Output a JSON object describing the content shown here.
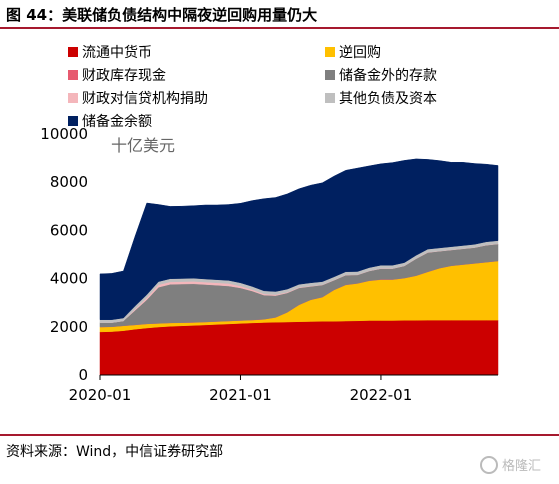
{
  "header": {
    "title": "图 44：美联储负债结构中隔夜逆回购用量仍大"
  },
  "footer": {
    "source": "资料来源：Wind，中信证券研究部",
    "watermark": "格隆汇"
  },
  "chart_data": {
    "type": "area",
    "stacked": true,
    "unit_label": "十亿美元",
    "x": [
      "2020-01",
      "2020-02",
      "2020-03",
      "2020-04",
      "2020-05",
      "2020-06",
      "2020-07",
      "2020-08",
      "2020-09",
      "2020-10",
      "2020-11",
      "2020-12",
      "2021-01",
      "2021-02",
      "2021-03",
      "2021-04",
      "2021-05",
      "2021-06",
      "2021-07",
      "2021-08",
      "2021-09",
      "2021-10",
      "2021-11",
      "2021-12",
      "2022-01",
      "2022-02",
      "2022-03",
      "2022-04",
      "2022-05",
      "2022-06",
      "2022-07",
      "2022-08",
      "2022-09",
      "2022-10",
      "2022-11"
    ],
    "x_ticks": [
      "2020-01",
      "2021-01",
      "2022-01"
    ],
    "ylim": [
      0,
      10000
    ],
    "y_ticks": [
      0,
      2000,
      4000,
      6000,
      8000,
      10000
    ],
    "grid": false,
    "legend_position": "top",
    "series": [
      {
        "name": "流通中货币",
        "color": "#cc0000",
        "values": [
          1790,
          1800,
          1840,
          1900,
          1950,
          1990,
          2020,
          2040,
          2060,
          2080,
          2100,
          2120,
          2140,
          2160,
          2180,
          2190,
          2200,
          2210,
          2220,
          2230,
          2230,
          2240,
          2250,
          2260,
          2260,
          2260,
          2270,
          2270,
          2280,
          2280,
          2280,
          2280,
          2280,
          2280,
          2280
        ]
      },
      {
        "name": "逆回购",
        "color": "#ffc000",
        "values": [
          200,
          200,
          200,
          180,
          170,
          150,
          140,
          130,
          120,
          120,
          120,
          120,
          120,
          120,
          130,
          200,
          400,
          700,
          900,
          1000,
          1300,
          1500,
          1550,
          1650,
          1700,
          1700,
          1750,
          1850,
          2000,
          2150,
          2250,
          2300,
          2350,
          2400,
          2450
        ]
      },
      {
        "name": "财政库存现金",
        "color": "#e75a6f",
        "values": [
          5,
          5,
          5,
          5,
          5,
          5,
          5,
          5,
          5,
          5,
          5,
          5,
          5,
          5,
          5,
          5,
          5,
          5,
          5,
          5,
          5,
          5,
          5,
          5,
          5,
          5,
          5,
          5,
          5,
          5,
          5,
          5,
          5,
          5,
          5
        ]
      },
      {
        "name": "储备金外的存款",
        "color": "#7f7f7f",
        "values": [
          180,
          170,
          200,
          600,
          1000,
          1500,
          1600,
          1600,
          1600,
          1550,
          1500,
          1450,
          1350,
          1200,
          1000,
          900,
          800,
          700,
          550,
          500,
          400,
          400,
          350,
          400,
          450,
          450,
          500,
          700,
          800,
          700,
          650,
          650,
          650,
          700,
          700
        ]
      },
      {
        "name": "财政对信贷机构捐助",
        "color": "#f4b6bb",
        "values": [
          0,
          0,
          0,
          50,
          80,
          100,
          100,
          100,
          100,
          100,
          100,
          100,
          80,
          60,
          50,
          40,
          30,
          20,
          20,
          10,
          10,
          10,
          10,
          10,
          10,
          10,
          10,
          10,
          10,
          10,
          10,
          10,
          10,
          10,
          10
        ]
      },
      {
        "name": "其他负债及资本",
        "color": "#bfbfbf",
        "values": [
          120,
          120,
          120,
          130,
          130,
          130,
          130,
          130,
          130,
          130,
          130,
          130,
          130,
          130,
          130,
          130,
          130,
          130,
          130,
          130,
          130,
          130,
          130,
          130,
          130,
          130,
          130,
          130,
          130,
          130,
          130,
          130,
          130,
          130,
          130
        ]
      },
      {
        "name": "储备金余额",
        "color": "#002060",
        "values": [
          1900,
          1920,
          1950,
          2900,
          3800,
          3200,
          3000,
          3000,
          3010,
          3070,
          3100,
          3150,
          3300,
          3560,
          3820,
          3900,
          3950,
          3960,
          4050,
          4100,
          4180,
          4210,
          4290,
          4220,
          4210,
          4260,
          4240,
          4000,
          3720,
          3620,
          3500,
          3450,
          3350,
          3220,
          3120
        ]
      }
    ]
  }
}
